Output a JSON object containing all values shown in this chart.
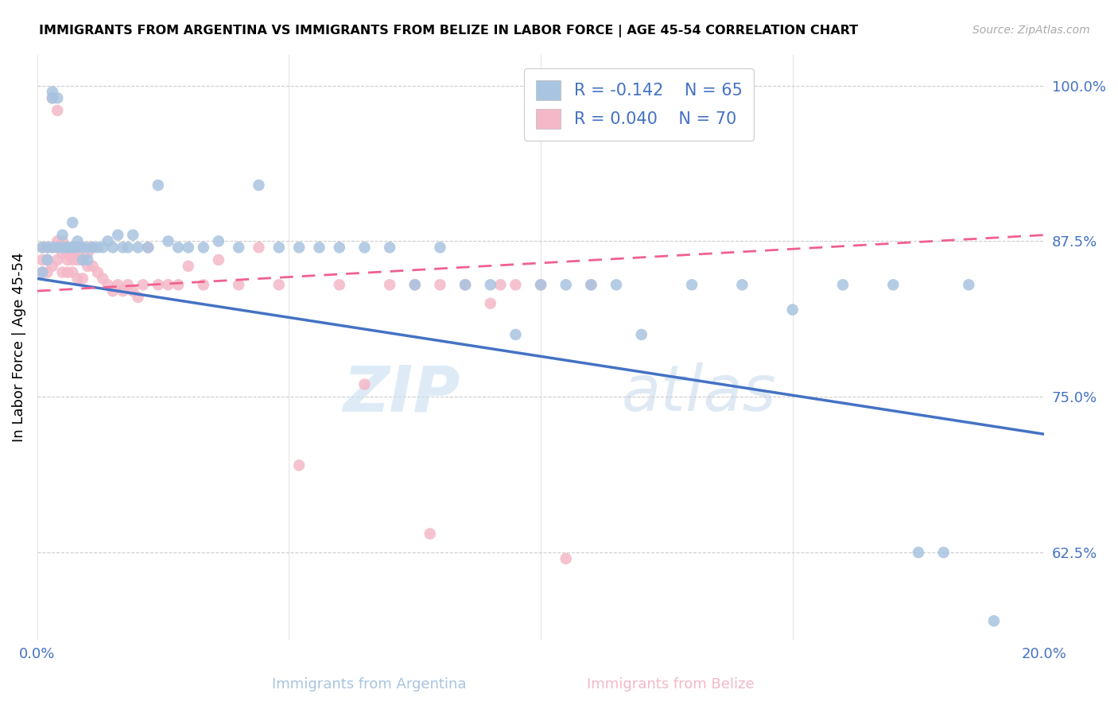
{
  "title": "IMMIGRANTS FROM ARGENTINA VS IMMIGRANTS FROM BELIZE IN LABOR FORCE | AGE 45-54 CORRELATION CHART",
  "source": "Source: ZipAtlas.com",
  "ylabel": "In Labor Force | Age 45-54",
  "xlabel_label_argentina": "Immigrants from Argentina",
  "xlabel_label_belize": "Immigrants from Belize",
  "xmin": 0.0,
  "xmax": 0.2,
  "ymin": 0.555,
  "ymax": 1.025,
  "yticks": [
    0.625,
    0.75,
    0.875,
    1.0
  ],
  "ytick_labels": [
    "62.5%",
    "75.0%",
    "87.5%",
    "100.0%"
  ],
  "xticks": [
    0.0,
    0.05,
    0.1,
    0.15,
    0.2
  ],
  "xtick_labels": [
    "0.0%",
    "",
    "",
    "",
    "20.0%"
  ],
  "legend_r_argentina": "-0.142",
  "legend_n_argentina": "65",
  "legend_r_belize": "0.040",
  "legend_n_belize": "70",
  "color_argentina": "#a8c4e0",
  "color_belize": "#f4b8c8",
  "trendline_argentina_color": "#4472c4",
  "trendline_belize_color": "#f06090",
  "watermark_zip": "ZIP",
  "watermark_atlas": "atlas",
  "argentina_trendline_x0": 0.0,
  "argentina_trendline_y0": 0.845,
  "argentina_trendline_x1": 0.2,
  "argentina_trendline_y1": 0.72,
  "belize_trendline_x0": 0.0,
  "belize_trendline_y0": 0.835,
  "belize_trendline_x1": 0.2,
  "belize_trendline_y1": 0.88,
  "argentina_x": [
    0.001,
    0.001,
    0.002,
    0.002,
    0.003,
    0.003,
    0.003,
    0.004,
    0.004,
    0.005,
    0.005,
    0.006,
    0.006,
    0.007,
    0.007,
    0.008,
    0.008,
    0.009,
    0.009,
    0.01,
    0.01,
    0.011,
    0.012,
    0.013,
    0.014,
    0.015,
    0.016,
    0.017,
    0.018,
    0.019,
    0.02,
    0.022,
    0.024,
    0.026,
    0.028,
    0.03,
    0.033,
    0.036,
    0.04,
    0.044,
    0.048,
    0.052,
    0.056,
    0.06,
    0.065,
    0.07,
    0.075,
    0.08,
    0.085,
    0.09,
    0.095,
    0.1,
    0.105,
    0.11,
    0.115,
    0.12,
    0.13,
    0.14,
    0.15,
    0.16,
    0.17,
    0.175,
    0.18,
    0.185,
    0.19
  ],
  "argentina_y": [
    0.87,
    0.85,
    0.86,
    0.87,
    0.99,
    0.995,
    0.87,
    0.99,
    0.87,
    0.88,
    0.87,
    0.87,
    0.87,
    0.89,
    0.87,
    0.875,
    0.87,
    0.86,
    0.87,
    0.86,
    0.87,
    0.87,
    0.87,
    0.87,
    0.875,
    0.87,
    0.88,
    0.87,
    0.87,
    0.88,
    0.87,
    0.87,
    0.92,
    0.875,
    0.87,
    0.87,
    0.87,
    0.875,
    0.87,
    0.92,
    0.87,
    0.87,
    0.87,
    0.87,
    0.87,
    0.87,
    0.84,
    0.87,
    0.84,
    0.84,
    0.8,
    0.84,
    0.84,
    0.84,
    0.84,
    0.8,
    0.84,
    0.84,
    0.82,
    0.84,
    0.84,
    0.625,
    0.625,
    0.84,
    0.57
  ],
  "belize_x": [
    0.001,
    0.001,
    0.001,
    0.002,
    0.002,
    0.002,
    0.003,
    0.003,
    0.003,
    0.004,
    0.004,
    0.004,
    0.004,
    0.005,
    0.005,
    0.005,
    0.005,
    0.006,
    0.006,
    0.006,
    0.006,
    0.007,
    0.007,
    0.007,
    0.007,
    0.008,
    0.008,
    0.008,
    0.008,
    0.009,
    0.009,
    0.009,
    0.01,
    0.01,
    0.011,
    0.011,
    0.012,
    0.013,
    0.014,
    0.015,
    0.016,
    0.017,
    0.018,
    0.019,
    0.02,
    0.021,
    0.022,
    0.024,
    0.026,
    0.028,
    0.03,
    0.033,
    0.036,
    0.04,
    0.044,
    0.048,
    0.052,
    0.06,
    0.065,
    0.07,
    0.075,
    0.078,
    0.08,
    0.085,
    0.09,
    0.092,
    0.095,
    0.1,
    0.105,
    0.11
  ],
  "belize_y": [
    0.87,
    0.86,
    0.85,
    0.87,
    0.86,
    0.85,
    0.99,
    0.87,
    0.855,
    0.98,
    0.875,
    0.87,
    0.86,
    0.875,
    0.87,
    0.865,
    0.85,
    0.87,
    0.865,
    0.86,
    0.85,
    0.87,
    0.865,
    0.86,
    0.85,
    0.87,
    0.865,
    0.86,
    0.845,
    0.87,
    0.86,
    0.845,
    0.865,
    0.855,
    0.87,
    0.855,
    0.85,
    0.845,
    0.84,
    0.835,
    0.84,
    0.835,
    0.84,
    0.835,
    0.83,
    0.84,
    0.87,
    0.84,
    0.84,
    0.84,
    0.855,
    0.84,
    0.86,
    0.84,
    0.87,
    0.84,
    0.695,
    0.84,
    0.76,
    0.84,
    0.84,
    0.64,
    0.84,
    0.84,
    0.825,
    0.84,
    0.84,
    0.84,
    0.62,
    0.84
  ]
}
